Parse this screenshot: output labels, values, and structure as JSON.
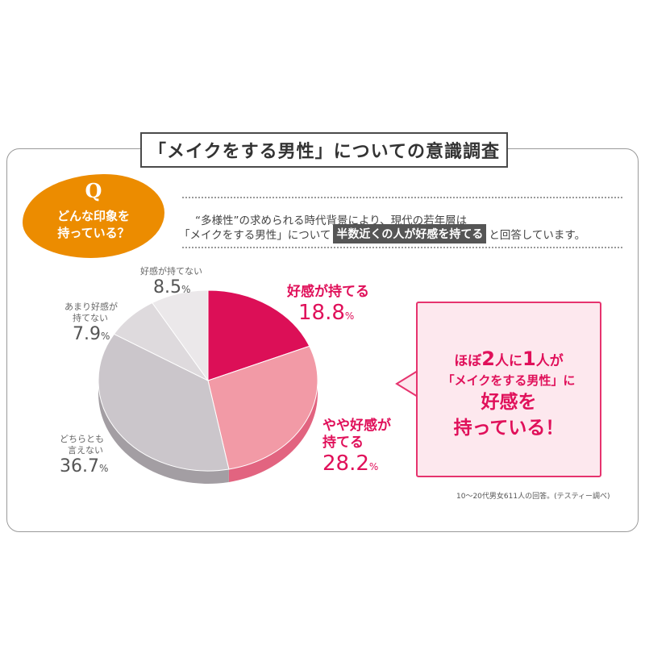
{
  "title": "「メイクをする男性」についての意識調査",
  "question": {
    "letter": "Q",
    "line1": "どんな印象を",
    "line2": "持っている？"
  },
  "intro": {
    "line1": "“多様性”の求められる時代背景により、現代の若年層は",
    "line2_a": "「メイクをする男性」について",
    "line2_highlight": "半数近くの人が好感を持てる",
    "line2_b": "と回答しています。"
  },
  "callout": {
    "l1a": "ほぼ",
    "l1b": "2",
    "l1c": "人に",
    "l1d": "1",
    "l1e": "人が",
    "l2": "「メイクをする男性」に",
    "l3": "好感を",
    "l4": "持っている！"
  },
  "source": "10～20代男女611人の回答。(テスティー調べ)",
  "labels": {
    "s0": {
      "name1": "好感が持てる",
      "name2": "",
      "pct": "18.8"
    },
    "s1": {
      "name1": "やや好感が",
      "name2": "持てる",
      "pct": "28.2"
    },
    "s2": {
      "name1": "どちらとも",
      "name2": "言えない",
      "pct": "36.7"
    },
    "s3": {
      "name1": "あまり好感が",
      "name2": "持てない",
      "pct": "7.9"
    },
    "s4": {
      "name1": "好感が持てない",
      "name2": "",
      "pct": "8.5"
    },
    "unit": "%"
  },
  "chart_data": {
    "type": "pie",
    "categories": [
      "好感が持てる",
      "やや好感が持てる",
      "どちらとも言えない",
      "あまり好感が持てない",
      "好感が持てない"
    ],
    "values": [
      18.8,
      28.2,
      36.7,
      7.9,
      8.5
    ],
    "colors": [
      "#dc0f57",
      "#f29aa6",
      "#cbc6cb",
      "#dedadd",
      "#ebe8ea"
    ],
    "side_colors": [
      "#b00a45",
      "#e26480",
      "#a39ea3",
      "#b6b2b5",
      "#c4c0c3"
    ],
    "unit": "%"
  }
}
